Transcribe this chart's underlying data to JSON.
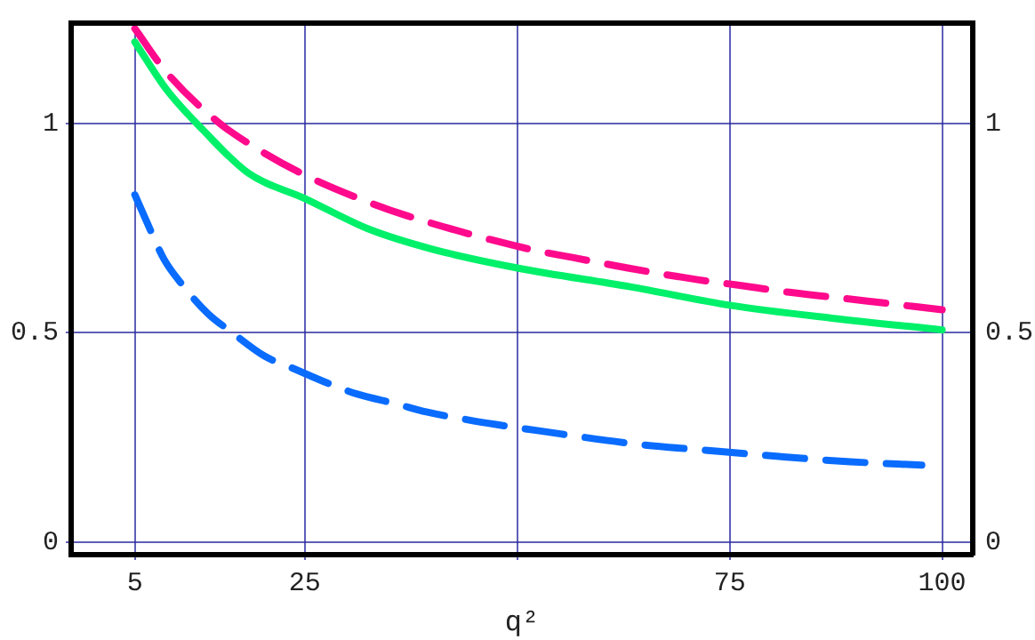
{
  "chart_data": {
    "type": "line",
    "xlabel": "q²",
    "xlim": [
      -2.5,
      103.6
    ],
    "ylim": [
      -0.03,
      1.24
    ],
    "y2lim": [
      -0.03,
      1.24
    ],
    "xticks": [
      5,
      25,
      {
        "value": 50,
        "label": null
      },
      75,
      100
    ],
    "yticks": [
      0,
      0.5,
      1
    ],
    "y2ticks": [
      0,
      0.5,
      1
    ],
    "grid": true,
    "legend": false,
    "marker": "none",
    "series": [
      {
        "color": "#ff0a8c",
        "line_style": "dashed",
        "x": [
          5,
          8.7,
          14.7,
          18.9,
          25,
          32,
          37,
          51.4,
          56.5,
          63,
          71.2,
          75.6,
          82,
          91.2,
          100
        ],
        "values": [
          1.227,
          1.123,
          1.005,
          0.946,
          0.877,
          0.816,
          0.78,
          0.7,
          0.68,
          0.655,
          0.627,
          0.615,
          0.597,
          0.576,
          0.555
        ]
      },
      {
        "color": "#00f06a",
        "line_style": "solid",
        "x": [
          5,
          8.7,
          13,
          18.4,
          25,
          32.4,
          40,
          50,
          63.3,
          75,
          87,
          100
        ],
        "values": [
          1.195,
          1.082,
          0.985,
          0.881,
          0.821,
          0.749,
          0.7,
          0.655,
          0.61,
          0.566,
          0.535,
          0.507
        ]
      },
      {
        "color": "#0a6cff",
        "line_style": "dashed",
        "x": [
          5,
          6.3,
          8.4,
          10.3,
          13.6,
          16.3,
          20.3,
          23.4,
          27.9,
          31.1,
          35.8,
          39.3,
          44.2,
          47.5,
          52.2,
          64.1,
          72.4,
          80.5,
          89.2,
          97.6
        ],
        "values": [
          0.83,
          0.77,
          0.677,
          0.622,
          0.546,
          0.503,
          0.444,
          0.417,
          0.378,
          0.354,
          0.33,
          0.311,
          0.292,
          0.281,
          0.267,
          0.234,
          0.219,
          0.205,
          0.192,
          0.184
        ]
      }
    ]
  }
}
